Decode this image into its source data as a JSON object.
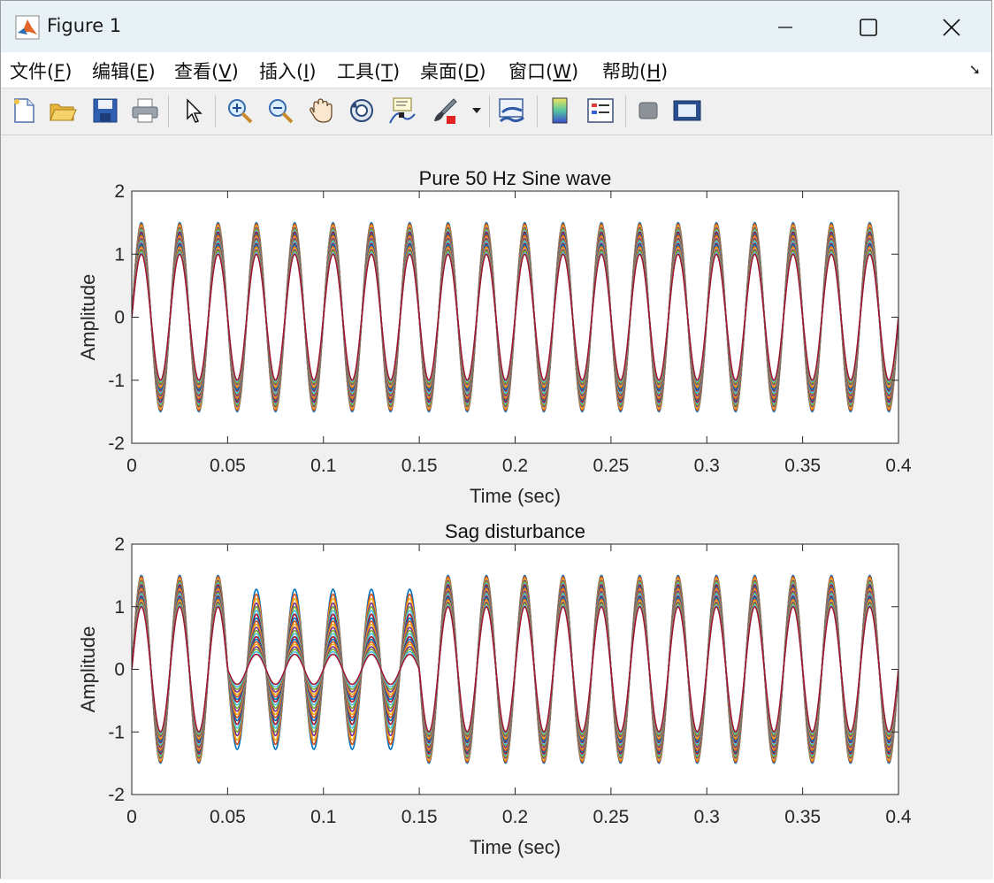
{
  "window": {
    "title": "Figure 1"
  },
  "menu": [
    {
      "label": "文件(",
      "key": "F",
      "tail": ")"
    },
    {
      "label": "编辑(",
      "key": "E",
      "tail": ")"
    },
    {
      "label": "查看(",
      "key": "V",
      "tail": ")"
    },
    {
      "label": "插入(",
      "key": "I",
      "tail": ")"
    },
    {
      "label": "工具(",
      "key": "T",
      "tail": ")"
    },
    {
      "label": "桌面(",
      "key": "D",
      "tail": ")"
    },
    {
      "label": "窗口(",
      "key": "W",
      "tail": ")"
    },
    {
      "label": "帮助(",
      "key": "H",
      "tail": ")"
    }
  ],
  "toolbar_icons": [
    "new-figure-icon",
    "open-file-icon",
    "save-icon",
    "print-icon",
    "pointer-icon",
    "zoom-in-icon",
    "zoom-out-icon",
    "pan-hand-icon",
    "rotate-3d-icon",
    "data-cursor-icon",
    "brush-icon",
    "brush-dropdown-icon",
    "link-plot-icon",
    "colorbar-icon",
    "legend-icon",
    "hide-plot-tools-icon",
    "show-plot-tools-icon"
  ],
  "colors": [
    "#0072BD",
    "#D95319",
    "#EDB120",
    "#7E2F8E",
    "#77AC30",
    "#4DBEEE",
    "#A2142F"
  ],
  "chart_data": [
    {
      "type": "line",
      "title": "Pure 50 Hz Sine wave",
      "xlabel": "Time (sec)",
      "ylabel": "Amplitude",
      "xlim": [
        0,
        0.4
      ],
      "ylim": [
        -2,
        2
      ],
      "xticks": [
        "0",
        "0.05",
        "0.1",
        "0.15",
        "0.2",
        "0.25",
        "0.3",
        "0.35",
        "0.4"
      ],
      "yticks": [
        "2",
        "1",
        "0",
        "-1",
        "-2"
      ],
      "frequency_hz": 50,
      "amplitudes": [
        1.5,
        1.48,
        1.45,
        1.42,
        1.4,
        1.37,
        1.35,
        1.32,
        1.3,
        1.27,
        1.25,
        1.22,
        1.2,
        1.17,
        1.15,
        1.12,
        1.1,
        1.07,
        1.05,
        1.02,
        1.0
      ],
      "grid": false
    },
    {
      "type": "line",
      "title": "Sag disturbance",
      "xlabel": "Time (sec)",
      "ylabel": "Amplitude",
      "xlim": [
        0,
        0.4
      ],
      "ylim": [
        -2,
        2
      ],
      "xticks": [
        "0",
        "0.05",
        "0.1",
        "0.15",
        "0.2",
        "0.25",
        "0.3",
        "0.35",
        "0.4"
      ],
      "yticks": [
        "2",
        "1",
        "0",
        "-1",
        "-2"
      ],
      "frequency_hz": 50,
      "sag_interval": [
        0.05,
        0.15
      ],
      "amplitudes": [
        1.5,
        1.48,
        1.45,
        1.42,
        1.4,
        1.37,
        1.35,
        1.32,
        1.3,
        1.27,
        1.25,
        1.22,
        1.2,
        1.17,
        1.15,
        1.12,
        1.1,
        1.07,
        1.05,
        1.02,
        1.0
      ],
      "sag_amplitudes": [
        1.28,
        1.2,
        1.13,
        1.06,
        1.0,
        0.94,
        0.88,
        0.82,
        0.77,
        0.72,
        0.67,
        0.62,
        0.57,
        0.52,
        0.48,
        0.44,
        0.4,
        0.36,
        0.32,
        0.28,
        0.24
      ],
      "grid": false
    }
  ]
}
